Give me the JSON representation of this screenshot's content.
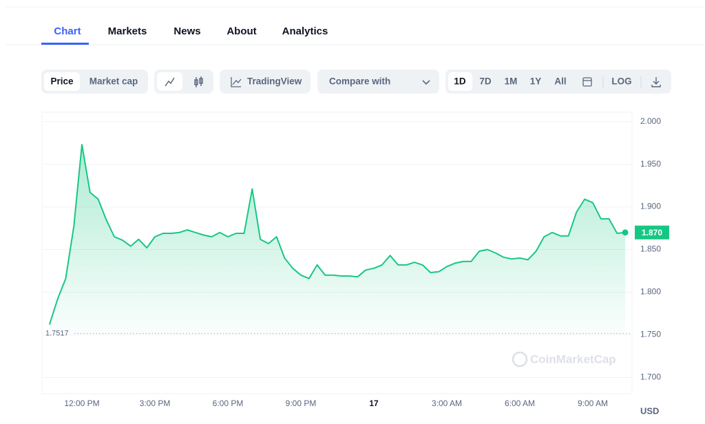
{
  "tabs": [
    "Chart",
    "Markets",
    "News",
    "About",
    "Analytics"
  ],
  "toolbar": {
    "price": "Price",
    "market_cap": "Market cap",
    "trading_view": "TradingView",
    "compare": "Compare with",
    "ranges": [
      "1D",
      "7D",
      "1M",
      "1Y",
      "All"
    ],
    "log": "LOG"
  },
  "chart_data": {
    "type": "line",
    "color": "#16c784",
    "grid": true,
    "categories": [
      null,
      null,
      null,
      null,
      "12:00 PM",
      null,
      null,
      null,
      null,
      null,
      null,
      null,
      null,
      "3:00 PM",
      null,
      null,
      null,
      null,
      null,
      null,
      null,
      null,
      "6:00 PM",
      null,
      null,
      null,
      null,
      null,
      null,
      null,
      null,
      "9:00 PM",
      null,
      null,
      null,
      null,
      null,
      null,
      null,
      null,
      "17",
      null,
      null,
      null,
      null,
      null,
      null,
      null,
      null,
      "3:00 AM",
      null,
      null,
      null,
      null,
      null,
      null,
      null,
      null,
      "6:00 AM",
      null,
      null,
      null,
      null,
      null,
      null,
      null,
      null,
      "9:00 AM",
      null,
      null,
      null,
      null
    ],
    "values": [
      1.762,
      1.792,
      1.816,
      1.877,
      1.973,
      1.917,
      1.909,
      1.885,
      1.865,
      1.861,
      1.854,
      1.862,
      1.852,
      1.865,
      1.869,
      1.869,
      1.87,
      1.873,
      1.87,
      1.867,
      1.865,
      1.87,
      1.865,
      1.869,
      1.869,
      1.921,
      1.862,
      1.857,
      1.865,
      1.84,
      1.828,
      1.82,
      1.816,
      1.832,
      1.82,
      1.82,
      1.819,
      1.819,
      1.818,
      1.826,
      1.828,
      1.832,
      1.843,
      1.832,
      1.832,
      1.835,
      1.832,
      1.823,
      1.824,
      1.83,
      1.834,
      1.836,
      1.836,
      1.848,
      1.85,
      1.846,
      1.841,
      1.839,
      1.84,
      1.838,
      1.848,
      1.865,
      1.87,
      1.866,
      1.866,
      1.894,
      1.909,
      1.905,
      1.886,
      1.886,
      1.869,
      1.87
    ],
    "ylim": [
      1.681,
      2.011
    ],
    "yticks": [
      {
        "value": 2,
        "label": "2.000"
      },
      {
        "value": 1.95,
        "label": "1.950"
      },
      {
        "value": 1.9,
        "label": "1.900"
      },
      {
        "value": 1.85,
        "label": "1.850"
      },
      {
        "value": 1.8,
        "label": "1.800"
      },
      {
        "value": 1.75,
        "label": "1.750"
      },
      {
        "value": 1.7,
        "label": "1.700"
      }
    ],
    "open_price": 1.7517,
    "current_price": {
      "value": 1.87,
      "label": "1.870"
    },
    "currency": "USD",
    "watermark": "CoinMarketCap"
  }
}
